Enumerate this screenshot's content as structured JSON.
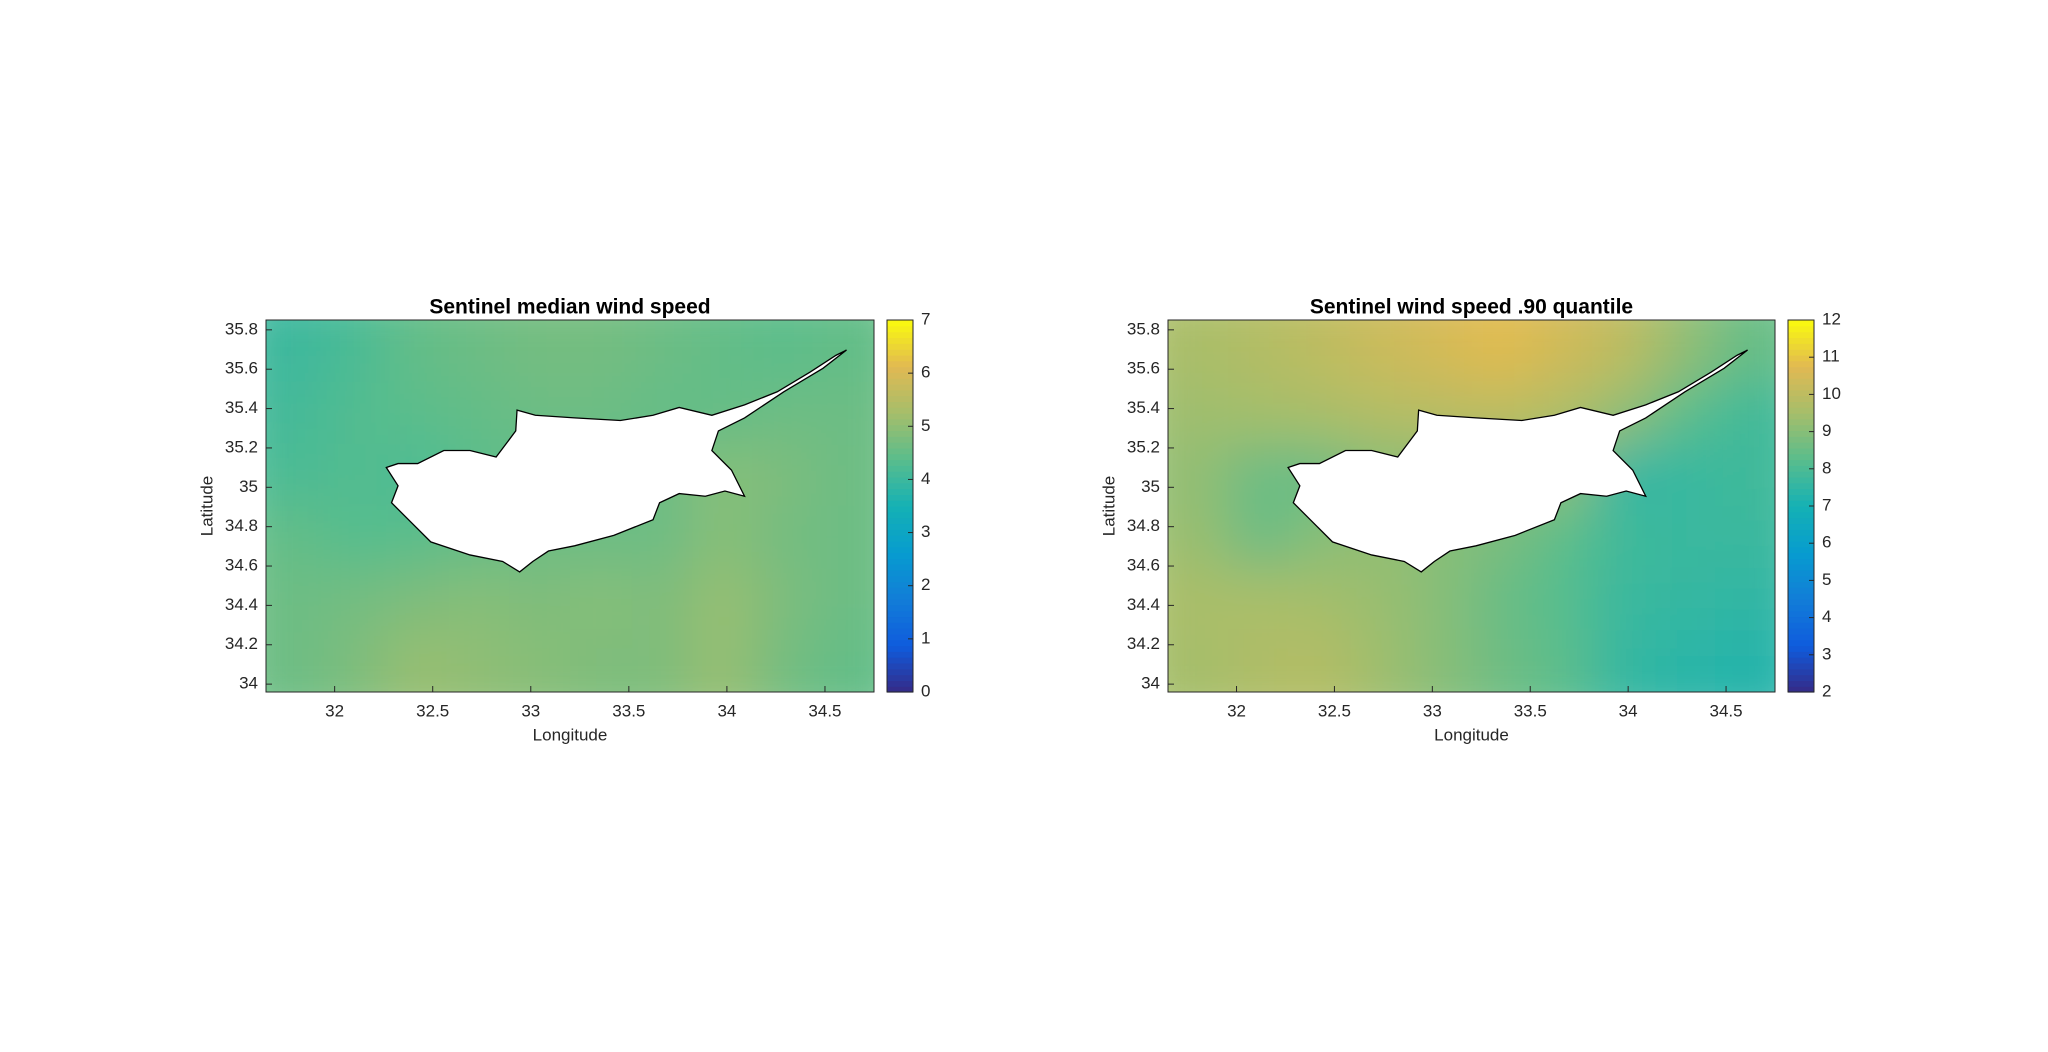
{
  "chart_data": [
    {
      "type": "heatmap",
      "title": "Sentinel median wind speed",
      "x_label": "Longitude",
      "y_label": "Latitude",
      "xlim": [
        31.65,
        34.75
      ],
      "ylim": [
        33.96,
        35.85
      ],
      "xticks": [
        32,
        32.5,
        33,
        33.5,
        34,
        34.5
      ],
      "yticks": [
        34,
        34.2,
        34.4,
        34.6,
        34.8,
        35,
        35.2,
        35.4,
        35.6,
        35.8
      ],
      "colormap": "parula",
      "clim": [
        0,
        7
      ],
      "cticks": [
        0,
        1,
        2,
        3,
        4,
        5,
        6,
        7
      ],
      "z": [
        [
          4.0,
          4.2,
          4.5,
          4.6,
          4.7,
          4.7,
          4.6,
          4.5,
          4.4,
          4.5
        ],
        [
          4.1,
          4.3,
          4.4,
          4.5,
          4.6,
          4.6,
          4.5,
          4.5,
          4.6,
          4.6
        ],
        [
          4.2,
          4.3,
          4.2,
          4.4,
          4.5,
          4.5,
          4.6,
          4.9,
          4.8,
          4.6
        ],
        [
          4.5,
          4.3,
          4.4,
          4.5,
          4.6,
          4.6,
          4.6,
          4.9,
          4.7,
          4.6
        ],
        [
          4.6,
          4.7,
          4.8,
          4.9,
          4.8,
          4.9,
          4.8,
          5.1,
          4.8,
          4.6
        ],
        [
          4.6,
          4.8,
          5.1,
          5.0,
          4.9,
          4.8,
          4.8,
          5.1,
          4.7,
          4.5
        ]
      ]
    },
    {
      "type": "heatmap",
      "title": "Sentinel wind speed .90 quantile",
      "x_label": "Longitude",
      "y_label": "Latitude",
      "xlim": [
        31.65,
        34.75
      ],
      "ylim": [
        33.96,
        35.85
      ],
      "xticks": [
        32,
        32.5,
        33,
        33.5,
        34,
        34.5
      ],
      "yticks": [
        34,
        34.2,
        34.4,
        34.6,
        34.8,
        35,
        35.2,
        35.4,
        35.6,
        35.8
      ],
      "colormap": "parula",
      "clim": [
        2,
        12
      ],
      "cticks": [
        2,
        3,
        4,
        5,
        6,
        7,
        8,
        9,
        10,
        11,
        12
      ],
      "z": [
        [
          9.6,
          9.8,
          10.0,
          10.3,
          10.5,
          10.8,
          10.4,
          10.0,
          9.2,
          8.5
        ],
        [
          9.4,
          9.5,
          9.6,
          9.8,
          9.9,
          10.0,
          9.7,
          9.2,
          8.3,
          7.8
        ],
        [
          9.2,
          8.5,
          8.5,
          9.0,
          9.0,
          9.0,
          9.2,
          7.5,
          7.6,
          7.8
        ],
        [
          9.3,
          8.5,
          9.0,
          9.2,
          9.0,
          8.8,
          8.3,
          7.8,
          7.7,
          7.7
        ],
        [
          9.6,
          9.6,
          9.5,
          9.3,
          9.0,
          8.5,
          8.2,
          7.7,
          7.6,
          7.5
        ],
        [
          9.5,
          9.7,
          9.8,
          9.4,
          9.0,
          8.6,
          8.3,
          7.6,
          7.4,
          7.3
        ]
      ]
    }
  ]
}
